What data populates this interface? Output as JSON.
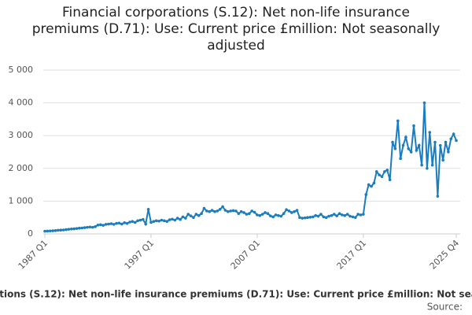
{
  "chart_data": {
    "type": "line",
    "title": "Financial corporations (S.12): Net non-life insurance premiums (D.71): Use: Current price £million: Not seasonally adjusted",
    "source": "Source:",
    "categories": [
      "1987 Q1",
      null,
      null,
      null,
      null,
      null,
      null,
      null,
      null,
      null,
      null,
      null,
      null,
      null,
      null,
      null,
      null,
      null,
      null,
      null,
      null,
      null,
      null,
      null,
      null,
      null,
      null,
      null,
      null,
      null,
      null,
      null,
      null,
      null,
      null,
      null,
      null,
      null,
      null,
      null,
      "1997 Q1",
      null,
      null,
      null,
      null,
      null,
      null,
      null,
      null,
      null,
      null,
      null,
      null,
      null,
      null,
      null,
      null,
      null,
      null,
      null,
      null,
      null,
      null,
      null,
      null,
      null,
      null,
      null,
      null,
      null,
      null,
      null,
      null,
      null,
      null,
      null,
      null,
      null,
      null,
      null,
      "2007 Q1",
      null,
      null,
      null,
      null,
      null,
      null,
      null,
      null,
      null,
      null,
      null,
      null,
      null,
      null,
      null,
      null,
      null,
      null,
      null,
      null,
      null,
      null,
      null,
      null,
      null,
      null,
      null,
      null,
      null,
      null,
      null,
      null,
      null,
      null,
      null,
      null,
      null,
      null,
      null,
      "2017 Q1",
      null,
      null,
      null,
      null,
      null,
      null,
      null,
      null,
      null,
      null,
      null,
      null,
      null,
      null,
      null,
      null,
      null,
      null,
      null,
      null,
      null,
      null,
      null,
      null,
      null,
      null,
      null,
      null,
      null,
      null,
      null,
      null,
      null,
      null,
      "2025 Q4"
    ],
    "series": [
      {
        "name": "Financial corporations (S.12): Net non-life insurance premiums (D.71): Use: Current price £million: Not seasonally adjusted",
        "color": "#1a7dbf",
        "values": [
          80,
          85,
          90,
          95,
          100,
          110,
          115,
          120,
          130,
          140,
          150,
          155,
          165,
          175,
          180,
          190,
          200,
          210,
          200,
          220,
          270,
          280,
          260,
          290,
          300,
          310,
          290,
          320,
          330,
          300,
          340,
          320,
          360,
          380,
          350,
          400,
          420,
          440,
          300,
          750,
          350,
          380,
          400,
          390,
          420,
          400,
          380,
          430,
          450,
          420,
          480,
          440,
          520,
          480,
          600,
          550,
          500,
          600,
          560,
          620,
          780,
          700,
          680,
          720,
          680,
          700,
          750,
          830,
          720,
          680,
          700,
          710,
          700,
          620,
          680,
          650,
          600,
          620,
          700,
          660,
          580,
          560,
          600,
          650,
          620,
          550,
          520,
          580,
          560,
          540,
          620,
          740,
          700,
          650,
          680,
          720,
          500,
          480,
          490,
          500,
          510,
          520,
          560,
          540,
          600,
          520,
          500,
          540,
          560,
          600,
          550,
          620,
          580,
          560,
          600,
          540,
          520,
          500,
          600,
          580,
          600,
          1200,
          1500,
          1450,
          1550,
          1900,
          1800,
          1750,
          1900,
          1950,
          1650,
          2800,
          2600,
          3450,
          2300,
          2700,
          2950,
          2600,
          2500,
          3300,
          2550,
          2700,
          2100,
          4000,
          2000,
          3100,
          2100,
          2800,
          1150,
          2700,
          2250,
          2800,
          2500,
          2900,
          3050,
          2850
        ]
      }
    ],
    "ylim": [
      0,
      5000
    ],
    "yticks": [
      0,
      {
        "value": 1000,
        "label": "1 000"
      },
      {
        "value": 2000,
        "label": "2 000"
      },
      {
        "value": 3000,
        "label": "3 000"
      },
      {
        "value": 4000,
        "label": "4 000"
      },
      {
        "value": 5000,
        "label": "5 000"
      }
    ],
    "grid": true
  }
}
